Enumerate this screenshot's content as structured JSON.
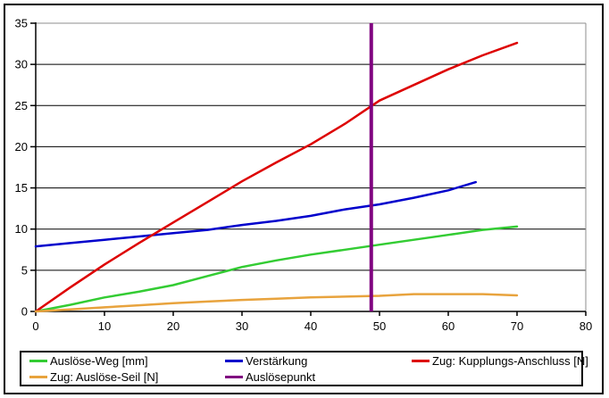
{
  "figure": {
    "background": "#FFFFFF",
    "border_color": "#000000"
  },
  "colors": {
    "gridline": "#000000",
    "plot_border_gray": "#8C8C8C",
    "axis": "#000000",
    "tick_text": "#000000",
    "green": "#33CC33",
    "blue": "#0000CC",
    "red": "#DD0000",
    "orange": "#E8A33D",
    "purple": "#800080"
  },
  "chart_data": {
    "type": "line",
    "title": "",
    "xlabel": "",
    "ylabel": "",
    "xlim": [
      0,
      80
    ],
    "ylim": [
      0,
      35
    ],
    "x_ticks": [
      0,
      10,
      20,
      30,
      40,
      50,
      60,
      70,
      80
    ],
    "y_ticks": [
      0,
      5,
      10,
      15,
      20,
      25,
      30,
      35
    ],
    "grid": "horizontal",
    "legend_position": "bottom",
    "series": [
      {
        "name": "Auslöse-Weg [mm]",
        "kind": "line",
        "color": "#33CC33",
        "x": [
          0,
          5,
          10,
          15,
          20,
          25,
          30,
          35,
          40,
          45,
          50,
          55,
          60,
          65,
          70
        ],
        "y": [
          0,
          0.8,
          1.7,
          2.4,
          3.2,
          4.3,
          5.4,
          6.2,
          6.9,
          7.5,
          8.1,
          8.7,
          9.3,
          9.9,
          10.3
        ]
      },
      {
        "name": "Verstärkung",
        "kind": "line",
        "color": "#0000CC",
        "x": [
          0,
          5,
          10,
          15,
          20,
          25,
          30,
          35,
          40,
          45,
          50,
          55,
          60,
          64
        ],
        "y": [
          7.9,
          8.3,
          8.7,
          9.1,
          9.5,
          9.9,
          10.5,
          11.0,
          11.6,
          12.4,
          13.0,
          13.8,
          14.7,
          15.7
        ]
      },
      {
        "name": "Zug: Kupplungs-Anschluss [N]",
        "kind": "line",
        "color": "#DD0000",
        "x": [
          0,
          5,
          10,
          15,
          20,
          25,
          30,
          35,
          40,
          45,
          50,
          55,
          60,
          65,
          70
        ],
        "y": [
          0,
          2.9,
          5.7,
          8.3,
          10.8,
          13.3,
          15.8,
          18.1,
          20.3,
          22.8,
          25.6,
          27.5,
          29.4,
          31.1,
          32.6
        ]
      },
      {
        "name": "Zug: Auslöse-Seil [N]",
        "kind": "line",
        "color": "#E8A33D",
        "x": [
          0,
          5,
          10,
          15,
          20,
          25,
          30,
          35,
          40,
          45,
          50,
          55,
          60,
          65,
          70
        ],
        "y": [
          0,
          0.25,
          0.5,
          0.75,
          1.0,
          1.2,
          1.4,
          1.55,
          1.7,
          1.8,
          1.9,
          2.1,
          2.1,
          2.1,
          1.95
        ]
      },
      {
        "name": "Auslösepunkt",
        "kind": "vline",
        "color": "#800080",
        "x_at": 48.8,
        "y_from": 0,
        "y_to": 35
      }
    ],
    "legend": {
      "entries": [
        {
          "label": "Auslöse-Weg [mm]",
          "color": "#33CC33"
        },
        {
          "label": "Verstärkung",
          "color": "#0000CC"
        },
        {
          "label": "Zug: Kupplungs-Anschluss [N]",
          "color": "#DD0000"
        },
        {
          "label": "Zug: Auslöse-Seil [N]",
          "color": "#E8A33D"
        },
        {
          "label": "Auslösepunkt",
          "color": "#800080"
        }
      ]
    }
  }
}
